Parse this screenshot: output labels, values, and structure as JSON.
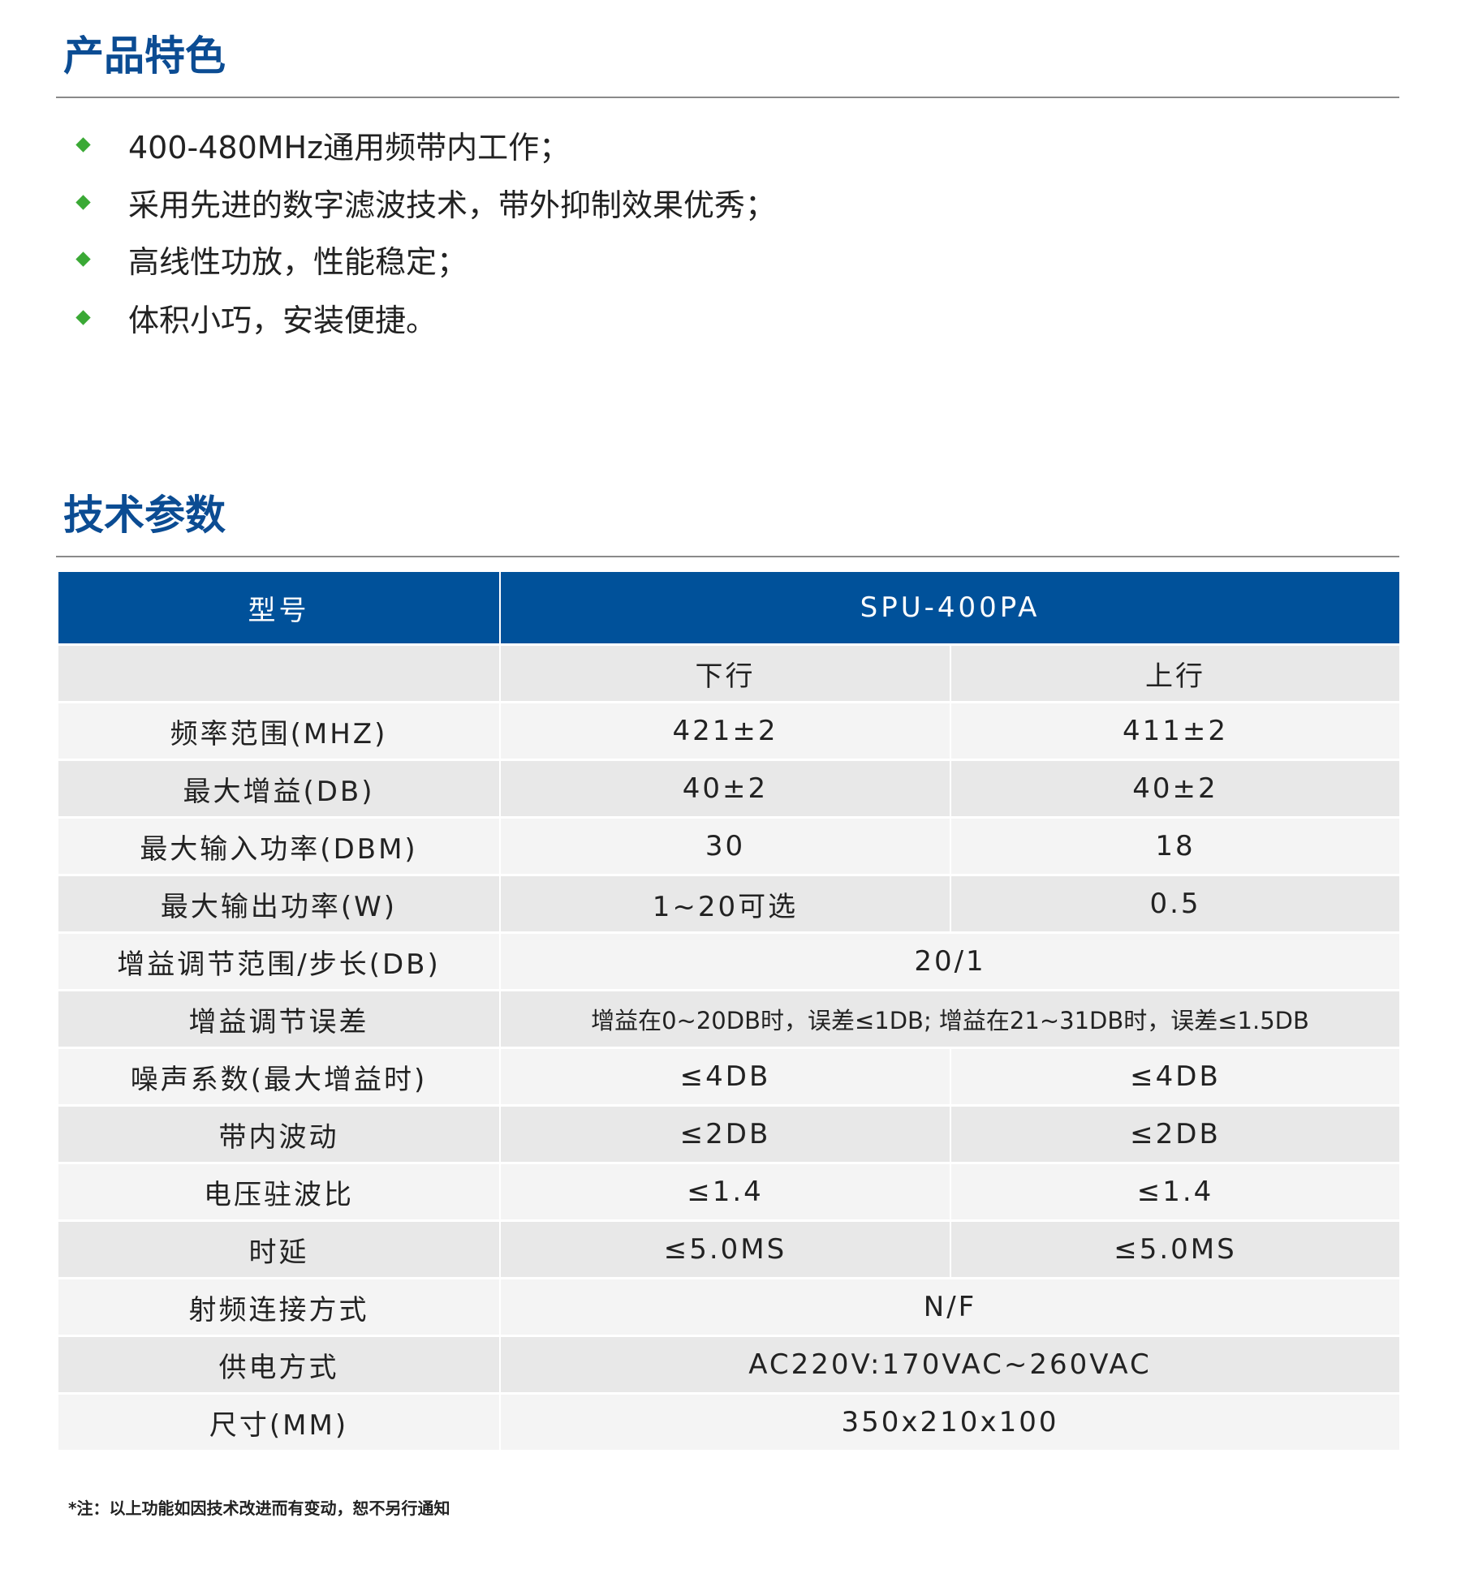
{
  "features": {
    "title": "产品特色",
    "items": [
      "400-480MHz通用频带内工作；",
      "采用先进的数字滤波技术，带外抑制效果优秀；",
      "高线性功放，性能稳定；",
      "体积小巧，安装便捷。"
    ]
  },
  "specs": {
    "title": "技术参数",
    "header": {
      "label": "型号",
      "model": "SPU-400PA"
    },
    "subheader": {
      "blank": "",
      "down": "下行",
      "up": "上行"
    },
    "rows": [
      {
        "label": "频率范围(MHZ)",
        "down": "421±2",
        "up": "411±2"
      },
      {
        "label": "最大增益(DB)",
        "down": "40±2",
        "up": "40±2"
      },
      {
        "label": "最大输入功率(DBM)",
        "down": "30",
        "up": "18"
      },
      {
        "label": "最大输出功率(W)",
        "down": "1~20可选",
        "up": "0.5"
      },
      {
        "label": "增益调节范围/步长(DB)",
        "value": "20/1"
      },
      {
        "label": "增益调节误差",
        "value": "增益在0~20DB时，误差≤1DB; 增益在21~31DB时，误差≤1.5DB"
      },
      {
        "label": "噪声系数(最大增益时)",
        "down": "≤4DB",
        "up": "≤4DB"
      },
      {
        "label": "带内波动",
        "down": "≤2DB",
        "up": "≤2DB"
      },
      {
        "label": "电压驻波比",
        "down": "≤1.4",
        "up": "≤1.4"
      },
      {
        "label": "时延",
        "down": "≤5.0MS",
        "up": "≤5.0MS"
      },
      {
        "label": "射频连接方式",
        "value": "N/F"
      },
      {
        "label": "供电方式",
        "value": "AC220V:170VAC~260VAC"
      },
      {
        "label": "尺寸(MM)",
        "value": "350x210x100"
      }
    ]
  },
  "footnote": "*注：以上功能如因技术改进而有变动，恕不另行通知",
  "colors": {
    "title": "#0b4c93",
    "header_bg": "#00519a",
    "bullet": "#3aa935",
    "row_light": "#f4f4f4",
    "row_dark": "#e8e8e8"
  }
}
